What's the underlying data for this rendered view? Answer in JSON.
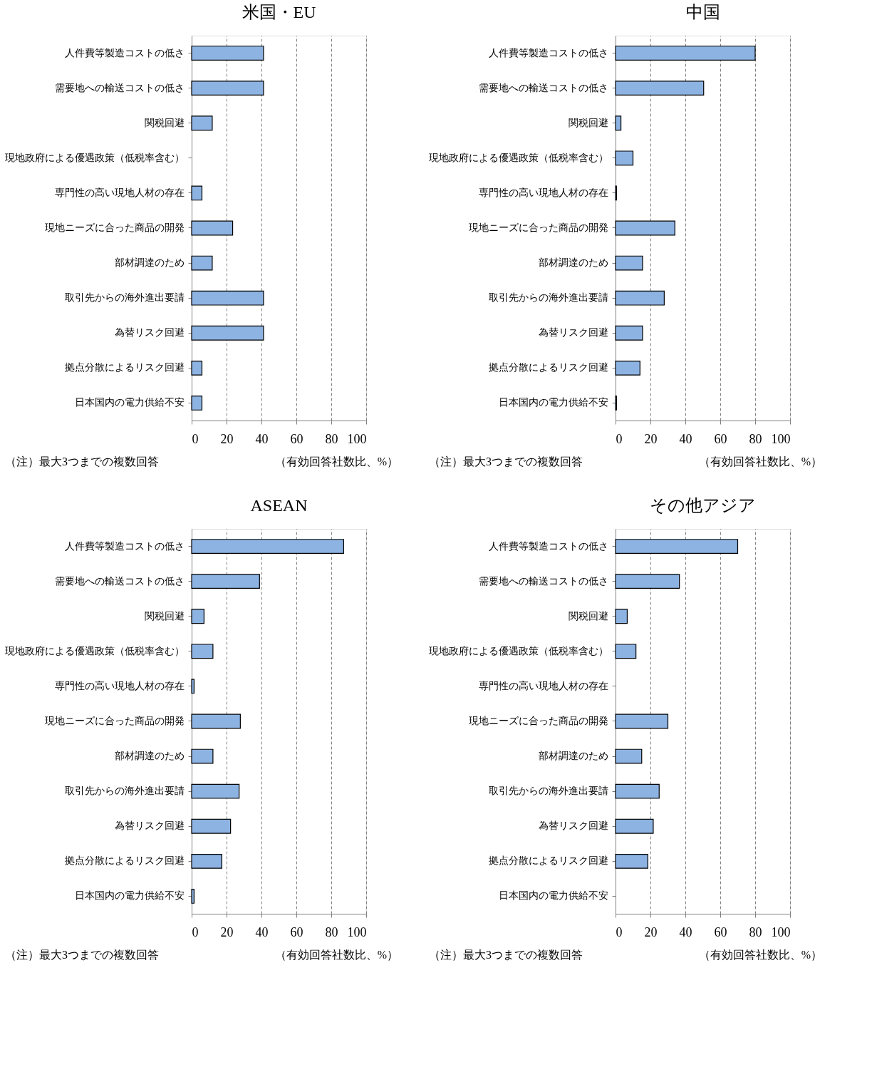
{
  "chart_data": [
    {
      "type": "bar",
      "orientation": "horizontal",
      "title": "米国・EU",
      "categories": [
        "人件費等製造コストの低さ",
        "需要地への輸送コストの低さ",
        "関税回避",
        "現地政府による優遇政策（低税率含む）",
        "専門性の高い現地人材の存在",
        "現地ニーズに合った商品の開発",
        "部材調達のため",
        "取引先からの海外進出要請",
        "為替リスク回避",
        "拠点分散によるリスク回避",
        "日本国内の電力供給不安"
      ],
      "values": [
        41.2,
        41.2,
        11.8,
        null,
        5.9,
        23.5,
        11.8,
        41.2,
        41.2,
        5.9,
        5.9
      ],
      "color": "#8db3e2",
      "xlim": [
        0,
        100
      ],
      "xticks": [
        0,
        20,
        40,
        60,
        80,
        100
      ],
      "grid": "x",
      "annotations": [
        "（注）最大3つまでの複数回答",
        "（有効回答社数比、%）"
      ]
    },
    {
      "type": "bar",
      "orientation": "horizontal",
      "title": "中国",
      "categories": [
        "人件費等製造コストの低さ",
        "需要地への輸送コストの低さ",
        "関税回避",
        "現地政府による優遇政策（低税率含む）",
        "専門性の高い現地人材の存在",
        "現地ニーズに合った商品の開発",
        "部材調達のため",
        "取引先からの海外進出要請",
        "為替リスク回避",
        "拠点分散によるリスク回避",
        "日本国内の電力供給不安"
      ],
      "values": [
        80,
        50.5,
        3.1,
        10,
        0.6,
        34,
        15.5,
        27.9,
        15.5,
        14,
        0.6
      ],
      "color": "#8db3e2",
      "xlim": [
        0,
        100
      ],
      "xticks": [
        0,
        20,
        40,
        60,
        80,
        100
      ],
      "grid": "x",
      "annotations": [
        "（注）最大3つまでの複数回答",
        "（有効回答社数比、%）"
      ]
    },
    {
      "type": "bar",
      "orientation": "horizontal",
      "title": "ASEAN",
      "categories": [
        "人件費等製造コストの低さ",
        "需要地への輸送コストの低さ",
        "関税回避",
        "現地政府による優遇政策（低税率含む）",
        "専門性の高い現地人材の存在",
        "現地ニーズに合った商品の開発",
        "部材調達のため",
        "取引先からの海外進出要請",
        "為替リスク回避",
        "拠点分散によるリスク回避",
        "日本国内の電力供給不安"
      ],
      "values": [
        87.1,
        38.9,
        7.1,
        12.2,
        1.4,
        27.9,
        12.2,
        27.2,
        22.3,
        17.3,
        1.4
      ],
      "color": "#8db3e2",
      "xlim": [
        0,
        100
      ],
      "xticks": [
        0,
        20,
        40,
        60,
        80,
        100
      ],
      "grid": "x",
      "annotations": [
        "（注）最大3つまでの複数回答",
        "（有効回答社数比、%）"
      ]
    },
    {
      "type": "bar",
      "orientation": "horizontal",
      "title": "その他アジア",
      "categories": [
        "人件費等製造コストの低さ",
        "需要地への輸送コストの低さ",
        "関税回避",
        "現地政府による優遇政策（低税率含む）",
        "専門性の高い現地人材の存在",
        "現地ニーズに合った商品の開発",
        "部材調達のため",
        "取引先からの海外進出要請",
        "為替リスク回避",
        "拠点分散によるリスク回避",
        "日本国内の電力供給不安"
      ],
      "values": [
        70,
        36.6,
        6.7,
        11.7,
        null,
        30,
        15,
        25,
        21.6,
        18.5,
        null
      ],
      "color": "#8db3e2",
      "xlim": [
        0,
        100
      ],
      "xticks": [
        0,
        20,
        40,
        60,
        80,
        100
      ],
      "grid": "x",
      "annotations": [
        "（注）最大3つまでの複数回答",
        "（有効回答社数比、%）"
      ]
    }
  ]
}
